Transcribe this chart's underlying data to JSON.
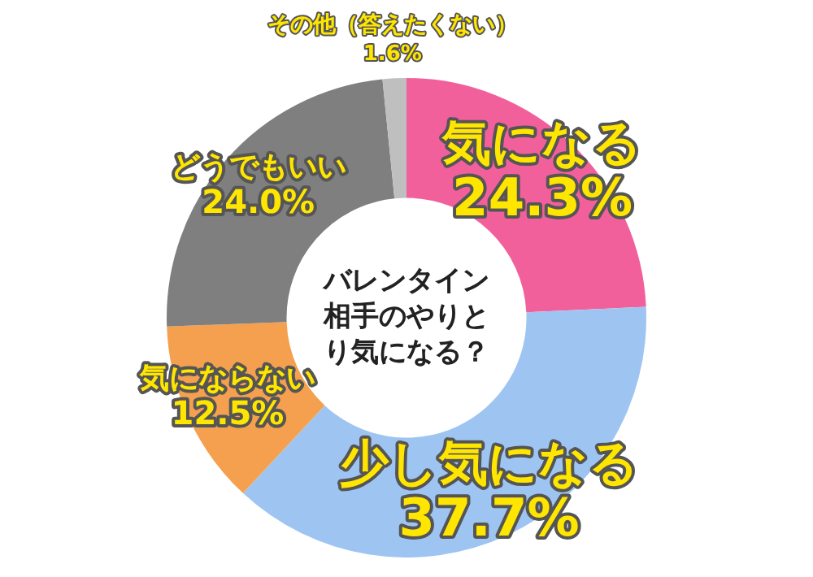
{
  "chart_data": {
    "type": "donut",
    "title": "バレンタイン相手のやりとり気になる？",
    "categories": [
      "気になる",
      "少し気になる",
      "気にならない",
      "どうでもいい",
      "その他（答えたくない）"
    ],
    "values": [
      24.3,
      37.7,
      12.5,
      24.0,
      1.6
    ],
    "value_labels": [
      "24.3%",
      "37.7%",
      "12.5%",
      "24.0%",
      "1.6%"
    ],
    "colors": [
      "#f2609c",
      "#9ec5f2",
      "#f5a04e",
      "#7f7f7f",
      "#bfbfbf"
    ],
    "legend": false
  }
}
